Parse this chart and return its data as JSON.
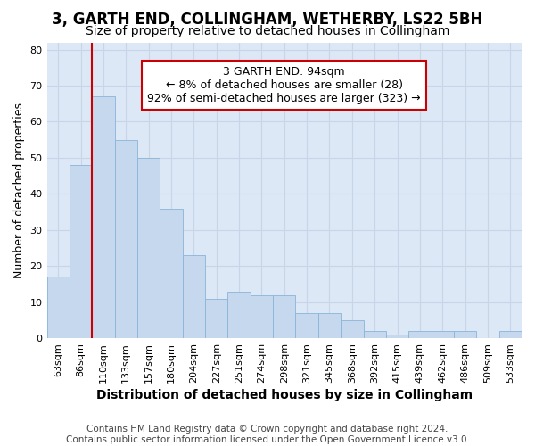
{
  "title": "3, GARTH END, COLLINGHAM, WETHERBY, LS22 5BH",
  "subtitle": "Size of property relative to detached houses in Collingham",
  "xlabel": "Distribution of detached houses by size in Collingham",
  "ylabel": "Number of detached properties",
  "categories": [
    "63sqm",
    "86sqm",
    "110sqm",
    "133sqm",
    "157sqm",
    "180sqm",
    "204sqm",
    "227sqm",
    "251sqm",
    "274sqm",
    "298sqm",
    "321sqm",
    "345sqm",
    "368sqm",
    "392sqm",
    "415sqm",
    "439sqm",
    "462sqm",
    "486sqm",
    "509sqm",
    "533sqm"
  ],
  "values": [
    17,
    48,
    67,
    55,
    50,
    36,
    23,
    11,
    13,
    12,
    12,
    7,
    7,
    5,
    2,
    1,
    2,
    2,
    2,
    0,
    2
  ],
  "bar_color": "#c5d8ee",
  "bar_edge_color": "#8ab4d8",
  "property_line_color": "#cc0000",
  "annotation_text": "3 GARTH END: 94sqm\n← 8% of detached houses are smaller (28)\n92% of semi-detached houses are larger (323) →",
  "annotation_box_facecolor": "#ffffff",
  "annotation_box_edgecolor": "#cc0000",
  "ylim": [
    0,
    82
  ],
  "yticks": [
    0,
    10,
    20,
    30,
    40,
    50,
    60,
    70,
    80
  ],
  "grid_color": "#c8d4e8",
  "background_color": "#dce8f5",
  "footer_text": "Contains HM Land Registry data © Crown copyright and database right 2024.\nContains public sector information licensed under the Open Government Licence v3.0.",
  "title_fontsize": 12,
  "subtitle_fontsize": 10,
  "xlabel_fontsize": 10,
  "ylabel_fontsize": 9,
  "tick_fontsize": 8,
  "annot_fontsize": 9,
  "footer_fontsize": 7.5
}
